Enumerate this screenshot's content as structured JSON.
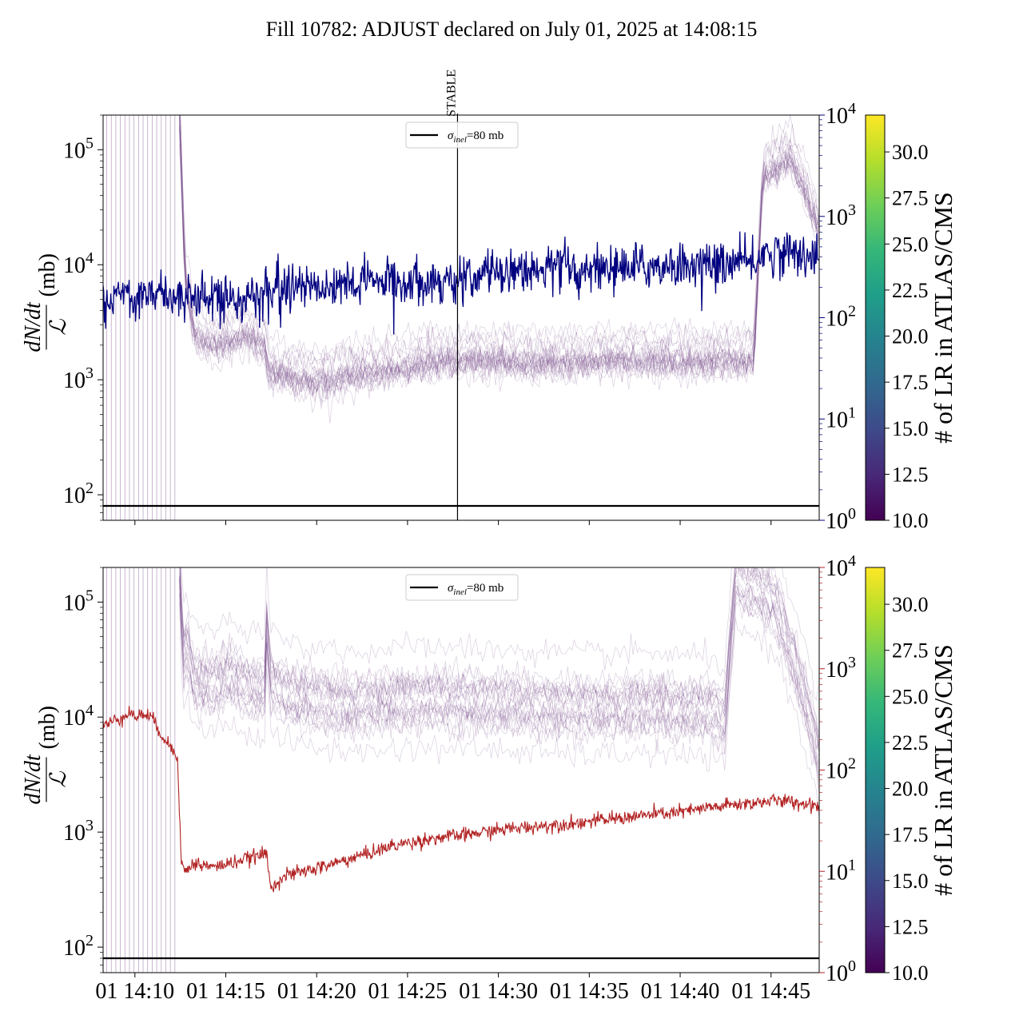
{
  "figure": {
    "title": "Fill 10782: ADJUST declared on July 01, 2025 at 14:08:15"
  },
  "legend": {
    "sigma_symbol": "σ",
    "sigma_sub": "inel",
    "label_rest": "=80 mb"
  },
  "stable_label": "STABLE",
  "ylabel": {
    "numerator": "dN/dt",
    "denominator": "ℒ",
    "unit": "(mb)"
  },
  "colorbar": {
    "label": "# of LR in ATLAS/CMS",
    "range": [
      10.0,
      32.0
    ],
    "ticks": [
      "10.0",
      "12.5",
      "15.0",
      "17.5",
      "20.0",
      "22.5",
      "25.0",
      "27.5",
      "30.0"
    ]
  },
  "colors": {
    "top_right_series": "#000080",
    "bottom_right_series": "#b22222",
    "bundle": "#7b4f8c",
    "reference": "#000000"
  },
  "chart_data": [
    {
      "type": "line",
      "panel": "top",
      "x_axis": {
        "unit": "minutes after 14:08:15",
        "range": [
          0.0,
          39.4
        ]
      },
      "y_left": {
        "scale": "log",
        "range": [
          60,
          200000
        ],
        "ticks": [
          100,
          1000,
          10000,
          100000
        ]
      },
      "y_right": {
        "scale": "log",
        "range": [
          1,
          10000
        ],
        "ticks": [
          1,
          10,
          100,
          1000,
          10000
        ],
        "color": "#000080"
      },
      "reference_line": {
        "name": "σinel=80 mb",
        "y": 80
      },
      "stable_marker_minute": 19.5,
      "bundle": {
        "n_lines": 22,
        "break_minute": 4.2,
        "early_vlines_minutes": [
          0.2,
          0.45,
          0.7,
          0.95,
          1.2,
          1.45,
          1.7,
          1.95,
          2.2,
          2.45,
          2.7,
          2.95,
          3.2,
          3.45,
          3.7,
          3.95
        ],
        "median_profile": [
          [
            4.2,
            200000
          ],
          [
            4.5,
            8000
          ],
          [
            5,
            2500
          ],
          [
            6,
            2100
          ],
          [
            7,
            2200
          ],
          [
            8,
            2600
          ],
          [
            8.9,
            2000
          ],
          [
            9.1,
            1200
          ],
          [
            10,
            1100
          ],
          [
            12,
            950
          ],
          [
            14,
            1150
          ],
          [
            16,
            1250
          ],
          [
            18,
            1450
          ],
          [
            19.5,
            1500
          ],
          [
            21,
            1500
          ],
          [
            24,
            1400
          ],
          [
            27,
            1500
          ],
          [
            30,
            1500
          ],
          [
            33,
            1450
          ],
          [
            35,
            1500
          ],
          [
            35.8,
            1500
          ],
          [
            36.3,
            60000
          ],
          [
            37,
            70000
          ],
          [
            37.8,
            90000
          ],
          [
            38.6,
            45000
          ],
          [
            39.4,
            20000
          ],
          [
            40,
            9000
          ],
          [
            41,
            4000
          ],
          [
            42,
            1800
          ],
          [
            43,
            1100
          ]
        ]
      },
      "series": [
        {
          "axis": "right",
          "profile": [
            [
              0.0,
              120
            ],
            [
              0.5,
              150
            ],
            [
              1,
              175
            ],
            [
              2,
              170
            ],
            [
              3,
              170
            ],
            [
              4,
              175
            ],
            [
              5,
              165
            ],
            [
              6,
              160
            ],
            [
              7,
              160
            ],
            [
              8,
              155
            ],
            [
              8.9,
              160
            ],
            [
              9.1,
              205
            ],
            [
              10,
              205
            ],
            [
              12,
              215
            ],
            [
              14,
              225
            ],
            [
              16,
              230
            ],
            [
              18,
              235
            ],
            [
              19.5,
              235
            ],
            [
              20.5,
              260
            ],
            [
              22,
              300
            ],
            [
              24,
              310
            ],
            [
              26,
              305
            ],
            [
              28,
              315
            ],
            [
              30,
              320
            ],
            [
              32,
              330
            ],
            [
              34,
              340
            ],
            [
              35.8,
              350
            ],
            [
              36.2,
              420
            ],
            [
              37,
              440
            ],
            [
              39.4,
              430
            ]
          ]
        }
      ]
    },
    {
      "type": "line",
      "panel": "bottom",
      "x_axis": {
        "unit": "minutes after 14:08:15",
        "range": [
          0.0,
          39.4
        ],
        "tick_minutes": [
          1.75,
          6.75,
          11.75,
          16.75,
          21.75,
          26.75,
          31.75,
          36.75
        ],
        "tick_labels": [
          "01 14:10",
          "01 14:15",
          "01 14:20",
          "01 14:25",
          "01 14:30",
          "01 14:35",
          "01 14:40",
          "01 14:45"
        ]
      },
      "y_left": {
        "scale": "log",
        "range": [
          60,
          200000
        ],
        "ticks": [
          100,
          1000,
          10000,
          100000
        ]
      },
      "y_right": {
        "scale": "log",
        "range": [
          1,
          10000
        ],
        "ticks": [
          1,
          10,
          100,
          1000,
          10000
        ],
        "color": "#b22222"
      },
      "reference_line": {
        "name": "σinel=80 mb",
        "y": 80
      },
      "bundle": {
        "n_lines": 22,
        "break_minute": 4.2,
        "early_vlines_minutes": [
          0.2,
          0.45,
          0.7,
          0.95,
          1.2,
          1.45,
          1.7,
          1.95,
          2.2,
          2.45,
          2.7,
          2.95,
          3.2,
          3.45,
          3.7,
          3.95
        ],
        "median_profile": [
          [
            4.2,
            200000
          ],
          [
            4.4,
            30000
          ],
          [
            4.6,
            40000
          ],
          [
            5,
            20000
          ],
          [
            6,
            18000
          ],
          [
            7,
            22000
          ],
          [
            8,
            17000
          ],
          [
            8.9,
            16000
          ],
          [
            9.0,
            60000
          ],
          [
            9.2,
            20000
          ],
          [
            10,
            15000
          ],
          [
            12,
            13000
          ],
          [
            14,
            12000
          ],
          [
            16,
            13000
          ],
          [
            18,
            13500
          ],
          [
            20,
            13000
          ],
          [
            22,
            12500
          ],
          [
            24,
            12000
          ],
          [
            26,
            11500
          ],
          [
            28,
            11500
          ],
          [
            30,
            12000
          ],
          [
            32,
            11000
          ],
          [
            33.5,
            11000
          ],
          [
            34.2,
            9000
          ],
          [
            34.8,
            150000
          ],
          [
            36,
            120000
          ],
          [
            37,
            90000
          ],
          [
            38,
            30000
          ],
          [
            39,
            8000
          ],
          [
            39.4,
            4000
          ]
        ]
      },
      "series": [
        {
          "axis": "right",
          "profile": [
            [
              0.0,
              270
            ],
            [
              0.5,
              300
            ],
            [
              1.0,
              330
            ],
            [
              1.4,
              380
            ],
            [
              1.8,
              330
            ],
            [
              2.2,
              360
            ],
            [
              2.6,
              340
            ],
            [
              3.0,
              260
            ],
            [
              3.4,
              200
            ],
            [
              3.8,
              160
            ],
            [
              4.1,
              140
            ],
            [
              4.3,
              12
            ],
            [
              4.5,
              10
            ],
            [
              5,
              12
            ],
            [
              6,
              11
            ],
            [
              7,
              12
            ],
            [
              8,
              13.5
            ],
            [
              9.0,
              15
            ],
            [
              9.2,
              7
            ],
            [
              10,
              9
            ],
            [
              12,
              11
            ],
            [
              14,
              14
            ],
            [
              16,
              18
            ],
            [
              18,
              21
            ],
            [
              20,
              23
            ],
            [
              22,
              26
            ],
            [
              24,
              28
            ],
            [
              26,
              30
            ],
            [
              28,
              33
            ],
            [
              30,
              36
            ],
            [
              32,
              39
            ],
            [
              34,
              44
            ],
            [
              36,
              48
            ],
            [
              37,
              50
            ],
            [
              39.4,
              45
            ]
          ]
        }
      ]
    }
  ]
}
